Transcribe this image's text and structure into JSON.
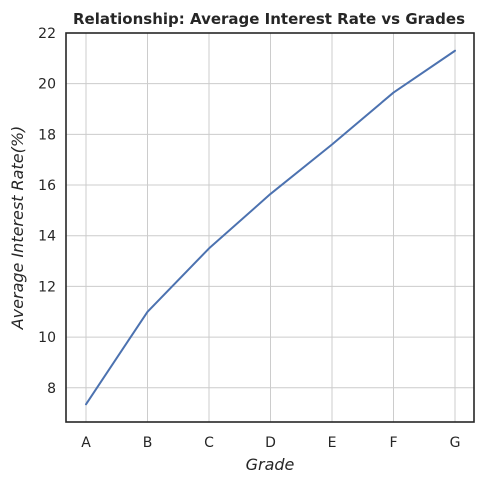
{
  "chart_data": {
    "type": "line",
    "title": "Relationship: Average Interest Rate vs Grades",
    "xlabel": "Grade",
    "ylabel": "Average Interest Rate(%)",
    "categories": [
      "A",
      "B",
      "C",
      "D",
      "E",
      "F",
      "G"
    ],
    "series": [
      {
        "values": [
          7.35,
          11.0,
          13.5,
          15.65,
          17.6,
          19.65,
          21.3
        ]
      }
    ],
    "ylim": [
      6.65,
      22.0
    ],
    "yticks": [
      "8",
      "10",
      "12",
      "14",
      "16",
      "18",
      "20",
      "22"
    ],
    "grid": true,
    "colors": {
      "line": "#4c72b0",
      "grid": "#cccccc",
      "axes": "#262626"
    }
  }
}
